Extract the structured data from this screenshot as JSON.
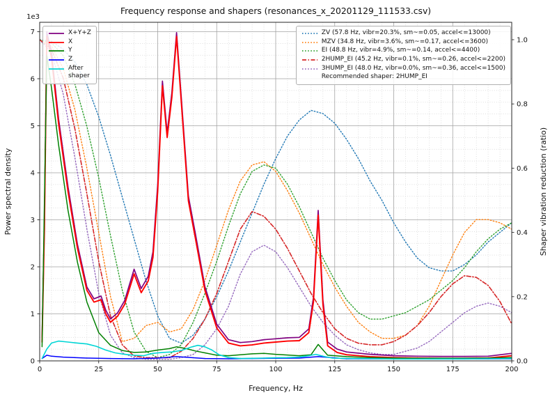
{
  "title": "Frequency response and shapers (resonances_x_20201129_111533.csv)",
  "chart_data": {
    "type": "line",
    "title": "Frequency response and shapers (resonances_x_20201129_111533.csv)",
    "xlabel": "Frequency, Hz",
    "ylabel_left": "Power spectral density",
    "ylabel_right": "Shaper vibration reduction (ratio)",
    "left_axis_multiplier_label": "1e3",
    "xlim": [
      0,
      200
    ],
    "ylim_left": [
      0,
      7200
    ],
    "ylim_right": [
      0,
      1.0542
    ],
    "x_major_ticks": [
      0,
      25,
      50,
      75,
      100,
      125,
      150,
      175,
      200
    ],
    "x_minor_step": 5,
    "left_major_ticks": [
      0,
      1000,
      2000,
      3000,
      4000,
      5000,
      6000,
      7000
    ],
    "left_minor_step": 250,
    "right_major_ticks": [
      0.0,
      0.2,
      0.4,
      0.6,
      0.8,
      1.0
    ],
    "grid": "both",
    "legend_left_title": "",
    "legend_right_note": "Recommended shaper: 2HUMP_EI",
    "psd_series": [
      {
        "name": "xyz",
        "label": "X+Y+Z",
        "color": "#800080",
        "style": "solid",
        "width": 1.7,
        "axis": "left",
        "x": [
          1,
          2,
          3,
          5,
          8,
          12,
          16,
          20,
          23,
          26,
          28,
          30,
          33,
          36,
          40,
          43,
          46,
          48,
          50,
          52,
          54,
          56,
          58,
          60,
          63,
          66,
          70,
          75,
          80,
          85,
          90,
          95,
          100,
          105,
          110,
          114,
          116,
          118,
          120,
          122,
          126,
          130,
          140,
          150,
          160,
          170,
          180,
          190,
          200
        ],
        "y": [
          500,
          3000,
          7000,
          6550,
          5150,
          3700,
          2480,
          1570,
          1320,
          1380,
          1080,
          890,
          1020,
          1280,
          1950,
          1540,
          1800,
          2320,
          3750,
          5950,
          4850,
          5700,
          6980,
          5600,
          3500,
          2700,
          1580,
          780,
          450,
          390,
          410,
          450,
          470,
          490,
          500,
          680,
          1350,
          3200,
          1300,
          400,
          250,
          190,
          140,
          110,
          100,
          95,
          95,
          100,
          160
        ]
      },
      {
        "name": "x",
        "label": "X",
        "color": "#ff0000",
        "style": "solid",
        "width": 1.9,
        "axis": "left",
        "x": [
          1,
          2,
          3,
          5,
          8,
          12,
          16,
          20,
          23,
          26,
          28,
          30,
          33,
          36,
          40,
          43,
          46,
          48,
          50,
          52,
          54,
          56,
          58,
          60,
          63,
          66,
          70,
          75,
          80,
          85,
          90,
          95,
          100,
          105,
          110,
          114,
          116,
          118,
          120,
          122,
          126,
          130,
          140,
          150,
          160,
          170,
          180,
          190,
          200
        ],
        "y": [
          400,
          2800,
          6900,
          6450,
          5050,
          3600,
          2400,
          1500,
          1250,
          1300,
          1000,
          820,
          950,
          1200,
          1850,
          1450,
          1700,
          2200,
          3600,
          5850,
          4750,
          5600,
          6900,
          5500,
          3400,
          2600,
          1500,
          700,
          380,
          320,
          340,
          380,
          400,
          420,
          430,
          600,
          1250,
          3100,
          1200,
          320,
          180,
          130,
          90,
          70,
          60,
          55,
          55,
          60,
          110
        ]
      },
      {
        "name": "y",
        "label": "Y",
        "color": "#008000",
        "style": "solid",
        "width": 1.5,
        "axis": "left",
        "x": [
          1,
          3,
          5,
          8,
          12,
          16,
          20,
          25,
          30,
          35,
          40,
          45,
          50,
          55,
          58,
          62,
          66,
          70,
          75,
          80,
          85,
          90,
          95,
          100,
          110,
          115,
          118,
          122,
          130,
          140,
          150,
          160,
          170,
          180,
          190,
          200
        ],
        "y": [
          300,
          6500,
          5800,
          4600,
          3200,
          2100,
          1250,
          600,
          330,
          220,
          180,
          190,
          230,
          260,
          300,
          260,
          210,
          170,
          120,
          110,
          130,
          150,
          160,
          140,
          110,
          130,
          350,
          120,
          90,
          70,
          60,
          55,
          55,
          55,
          60,
          70
        ]
      },
      {
        "name": "z",
        "label": "Z",
        "color": "#0000ff",
        "style": "solid",
        "width": 1.5,
        "axis": "left",
        "x": [
          1,
          3,
          5,
          10,
          20,
          30,
          40,
          50,
          58,
          70,
          80,
          90,
          100,
          110,
          118,
          130,
          150,
          170,
          200
        ],
        "y": [
          50,
          120,
          100,
          80,
          60,
          50,
          45,
          60,
          90,
          50,
          45,
          50,
          55,
          60,
          90,
          45,
          40,
          40,
          45
        ]
      },
      {
        "name": "after_shaper",
        "label": "After\nshaper",
        "color": "#00d5d5",
        "style": "solid",
        "width": 1.6,
        "axis": "left",
        "x": [
          1,
          3,
          5,
          8,
          12,
          16,
          20,
          24,
          28,
          32,
          36,
          40,
          44,
          48,
          52,
          56,
          60,
          64,
          67,
          70,
          73,
          76,
          80,
          85,
          90,
          95,
          100,
          105,
          110,
          114,
          117,
          120,
          124,
          130,
          140,
          150,
          160,
          170,
          180,
          190,
          200
        ],
        "y": [
          50,
          250,
          380,
          420,
          400,
          380,
          360,
          310,
          230,
          170,
          140,
          120,
          110,
          160,
          180,
          190,
          220,
          290,
          330,
          300,
          230,
          130,
          70,
          50,
          55,
          60,
          65,
          70,
          80,
          110,
          140,
          100,
          60,
          50,
          45,
          40,
          40,
          40,
          40,
          45,
          50
        ]
      }
    ],
    "shapers_x": [
      0,
      5,
      10,
      15,
      20,
      25,
      30,
      35,
      40,
      45,
      50,
      55,
      60,
      65,
      70,
      75,
      80,
      85,
      90,
      95,
      100,
      105,
      110,
      115,
      120,
      125,
      130,
      135,
      140,
      145,
      150,
      155,
      160,
      165,
      170,
      175,
      180,
      185,
      190,
      195,
      200
    ],
    "shaper_series": [
      {
        "name": "zv",
        "label": "ZV (57.8 Hz, vibr=20.3%, sm~=0.05, accel<=13000)",
        "color": "#1f77b4",
        "style": "dotted",
        "width": 1.4,
        "axis": "right",
        "values": [
          1.0,
          0.995,
          0.97,
          0.93,
          0.86,
          0.76,
          0.64,
          0.51,
          0.38,
          0.25,
          0.14,
          0.07,
          0.055,
          0.08,
          0.13,
          0.2,
          0.28,
          0.37,
          0.46,
          0.55,
          0.63,
          0.7,
          0.75,
          0.78,
          0.77,
          0.74,
          0.69,
          0.63,
          0.56,
          0.5,
          0.43,
          0.37,
          0.32,
          0.29,
          0.28,
          0.28,
          0.3,
          0.33,
          0.37,
          0.4,
          0.43
        ]
      },
      {
        "name": "mzv",
        "label": "MZV (34.8 Hz, vibr=3.6%, sm~=0.17, accel<=3600)",
        "color": "#ff7f0e",
        "style": "dotted",
        "width": 1.4,
        "axis": "right",
        "values": [
          1.0,
          0.98,
          0.91,
          0.78,
          0.6,
          0.4,
          0.2,
          0.06,
          0.07,
          0.11,
          0.12,
          0.09,
          0.1,
          0.16,
          0.25,
          0.36,
          0.47,
          0.56,
          0.61,
          0.62,
          0.59,
          0.53,
          0.46,
          0.38,
          0.3,
          0.23,
          0.17,
          0.12,
          0.09,
          0.07,
          0.07,
          0.08,
          0.11,
          0.17,
          0.25,
          0.33,
          0.4,
          0.44,
          0.44,
          0.43,
          0.41
        ]
      },
      {
        "name": "ei",
        "label": "EI (48.8 Hz, vibr=4.9%, sm~=0.14, accel<=4400)",
        "color": "#2ca02c",
        "style": "dotted",
        "width": 1.4,
        "axis": "right",
        "values": [
          1.0,
          0.99,
          0.95,
          0.86,
          0.73,
          0.57,
          0.39,
          0.22,
          0.09,
          0.03,
          0.01,
          0.02,
          0.05,
          0.12,
          0.21,
          0.31,
          0.42,
          0.52,
          0.59,
          0.61,
          0.6,
          0.55,
          0.48,
          0.4,
          0.32,
          0.25,
          0.19,
          0.15,
          0.13,
          0.13,
          0.14,
          0.15,
          0.17,
          0.19,
          0.22,
          0.25,
          0.29,
          0.34,
          0.38,
          0.41,
          0.43
        ]
      },
      {
        "name": "hump3_ei",
        "label": "3HUMP_EI (48.0 Hz, vibr=0.0%, sm~=0.36, accel<=1500)",
        "color": "#9467bd",
        "style": "dotted",
        "width": 1.4,
        "axis": "right",
        "values": [
          1.0,
          0.96,
          0.83,
          0.63,
          0.41,
          0.21,
          0.08,
          0.025,
          0.01,
          0.005,
          0.005,
          0.005,
          0.01,
          0.02,
          0.05,
          0.1,
          0.17,
          0.27,
          0.34,
          0.36,
          0.34,
          0.29,
          0.23,
          0.17,
          0.12,
          0.08,
          0.05,
          0.035,
          0.025,
          0.02,
          0.02,
          0.03,
          0.04,
          0.06,
          0.09,
          0.12,
          0.15,
          0.17,
          0.18,
          0.17,
          0.15
        ]
      },
      {
        "name": "hump2_ei",
        "label": "2HUMP_EI (45.2 Hz, vibr=0.1%, sm~=0.26, accel<=2200)",
        "color": "#d62728",
        "style": "dashdot",
        "width": 1.6,
        "axis": "right",
        "values": [
          1.0,
          0.97,
          0.88,
          0.72,
          0.52,
          0.31,
          0.14,
          0.05,
          0.015,
          0.01,
          0.01,
          0.01,
          0.03,
          0.07,
          0.13,
          0.21,
          0.31,
          0.41,
          0.465,
          0.45,
          0.41,
          0.35,
          0.28,
          0.21,
          0.15,
          0.1,
          0.07,
          0.055,
          0.05,
          0.05,
          0.06,
          0.08,
          0.11,
          0.15,
          0.2,
          0.24,
          0.265,
          0.26,
          0.235,
          0.185,
          0.115
        ]
      }
    ],
    "legend_right_order": [
      "zv",
      "mzv",
      "ei",
      "hump2_ei",
      "hump3_ei"
    ]
  }
}
